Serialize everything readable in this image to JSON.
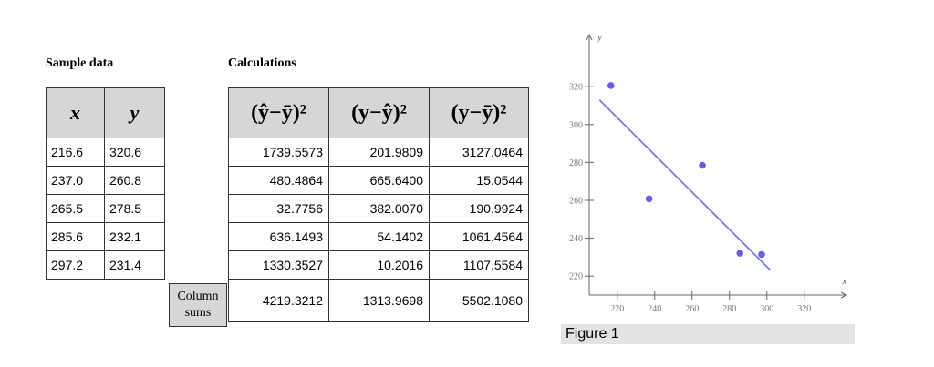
{
  "sample": {
    "heading": "Sample data",
    "columns": [
      "x",
      "y"
    ],
    "rows": [
      [
        "216.6",
        "320.6"
      ],
      [
        "237.0",
        "260.8"
      ],
      [
        "265.5",
        "278.5"
      ],
      [
        "285.6",
        "232.1"
      ],
      [
        "297.2",
        "231.4"
      ]
    ]
  },
  "calc": {
    "heading": "Calculations",
    "headers": [
      "(ŷ−ȳ)²",
      "(y−ŷ)²",
      "(y−ȳ)²"
    ],
    "rows": [
      [
        "1739.5573",
        "201.9809",
        "3127.0464"
      ],
      [
        "480.4864",
        "665.6400",
        "15.0544"
      ],
      [
        "32.7756",
        "382.0070",
        "190.9924"
      ],
      [
        "636.1493",
        "54.1402",
        "1061.4564"
      ],
      [
        "1330.3527",
        "10.2016",
        "1107.5584"
      ]
    ],
    "sum_label": "Column sums",
    "sums": [
      "4219.3212",
      "1313.9698",
      "5502.1080"
    ]
  },
  "chart_data": {
    "type": "scatter",
    "xlabel": "x",
    "ylabel": "y",
    "xlim": [
      205,
      325
    ],
    "ylim": [
      210,
      330
    ],
    "xticks": [
      220,
      240,
      260,
      280,
      300,
      320
    ],
    "yticks": [
      220,
      240,
      260,
      280,
      300,
      320
    ],
    "points": [
      {
        "x": 216.6,
        "y": 320.6
      },
      {
        "x": 237.0,
        "y": 260.8
      },
      {
        "x": 265.5,
        "y": 278.5
      },
      {
        "x": 285.6,
        "y": 232.1
      },
      {
        "x": 297.2,
        "y": 231.4
      }
    ],
    "regression_line": {
      "x1": 210.5,
      "y1": 313.0,
      "x2": 302.0,
      "y2": 223.0
    },
    "point_color": "#6a5ee8",
    "line_color": "#7a78e8",
    "grid": false
  },
  "figure": {
    "caption": "Figure 1"
  }
}
